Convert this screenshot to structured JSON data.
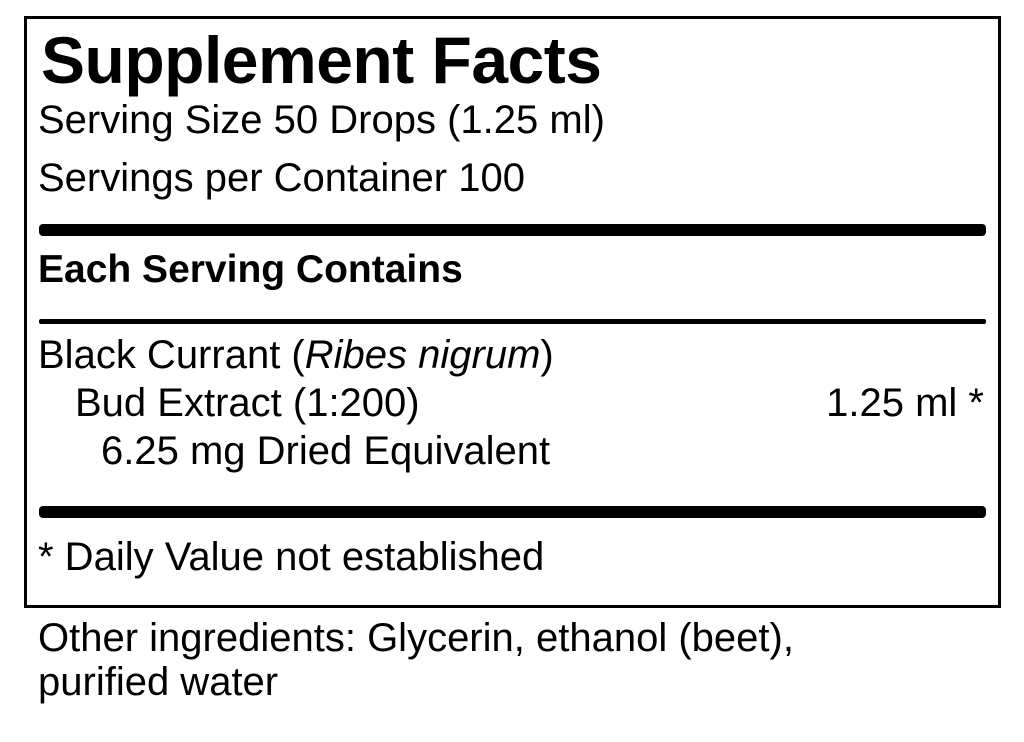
{
  "label": {
    "title": "Supplement Facts",
    "serving_size": "Serving Size 50 Drops (1.25 ml)",
    "servings_per_container": "Servings per Container 100",
    "section_heading": "Each Serving Contains",
    "ingredient": {
      "name_prefix": "Black Currant (",
      "latin_name": "Ribes nigrum",
      "name_suffix": ")",
      "line2": "Bud Extract (1:200)",
      "amount": "1.25 ml *",
      "line3": "6.25 mg Dried Equivalent"
    },
    "footnote": "* Daily Value not established"
  },
  "other_ingredients": {
    "line1": "Other ingredients: Glycerin, ethanol (beet),",
    "line2": "purified water"
  }
}
